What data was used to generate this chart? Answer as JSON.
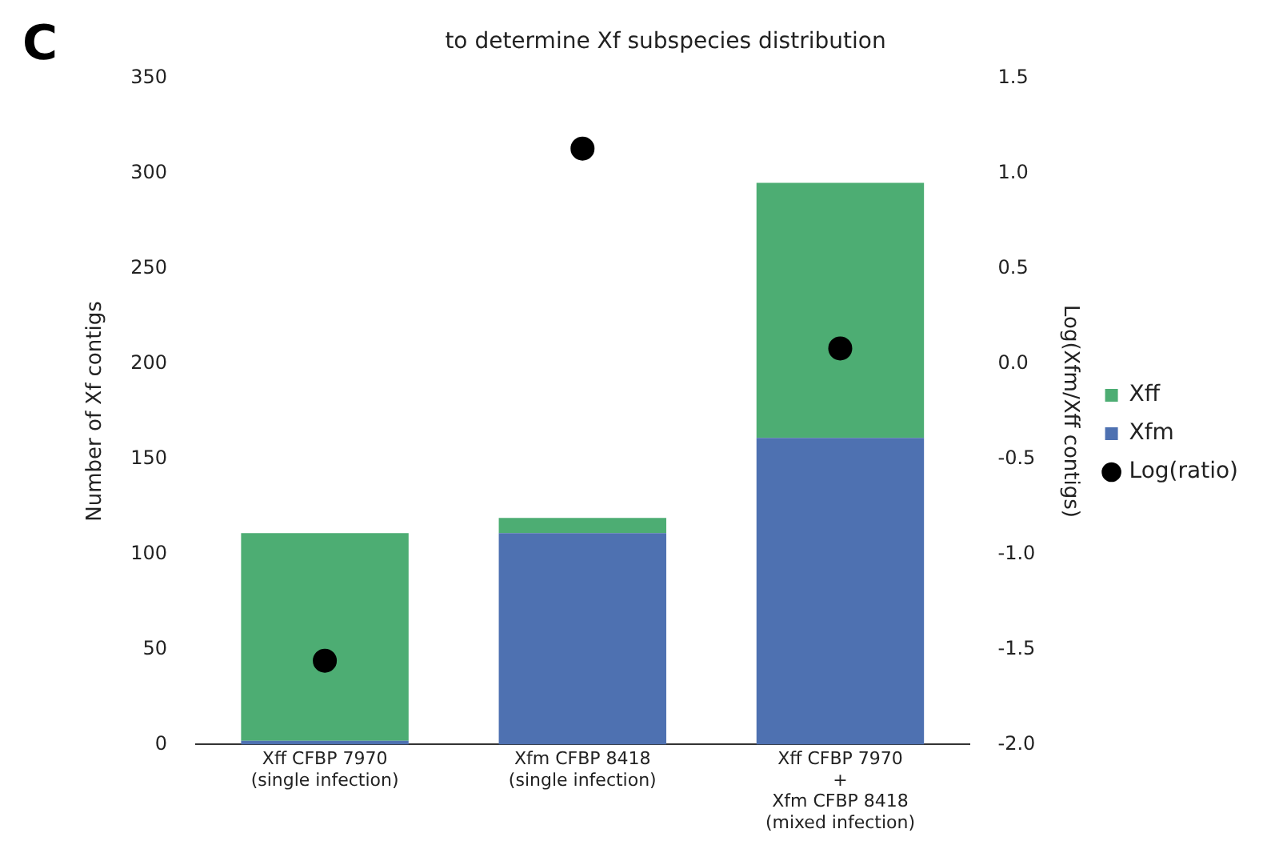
{
  "chart_data": {
    "type": "bar",
    "stacked": true,
    "title": "to determine Xf subspecies distribution",
    "annotations": [
      "C"
    ],
    "ylabel": "Number of Xf contigs",
    "y2label": "Log(Xfm/Xff contigs)",
    "categories": [
      "Xff CFBP 7970\n(single infection)",
      "Xfm CFBP 8418\n(single infection)",
      "Xff CFBP 7970\n+\nXfm CFBP 8418\n(mixed infection)"
    ],
    "series": [
      {
        "name": "Xfm",
        "color": "#4e71b1",
        "values": [
          2,
          111,
          161
        ]
      },
      {
        "name": "Xff",
        "color": "#4dad73",
        "values": [
          109,
          8,
          134
        ]
      },
      {
        "name": "Log(ratio)",
        "type": "scatter",
        "axis": "y2",
        "color": "#000000",
        "marker": "circle",
        "values": [
          -1.56,
          1.13,
          0.08
        ]
      }
    ],
    "ylim": [
      0,
      350
    ],
    "yticks": [
      0,
      50,
      100,
      150,
      200,
      250,
      300,
      350
    ],
    "y2lim": [
      -2,
      1.5
    ],
    "y2ticks": [
      {
        "value": -2,
        "label": "-2.0"
      },
      {
        "value": -1.5,
        "label": "-1.5"
      },
      {
        "value": -1,
        "label": "-1.0"
      },
      {
        "value": -0.5,
        "label": "-0.5"
      },
      {
        "value": 0,
        "label": "0.0"
      },
      {
        "value": 0.5,
        "label": "0.5"
      },
      {
        "value": 1,
        "label": "1.0"
      },
      {
        "value": 1.5,
        "label": "1.5"
      }
    ],
    "grid": false,
    "legend": "right"
  }
}
